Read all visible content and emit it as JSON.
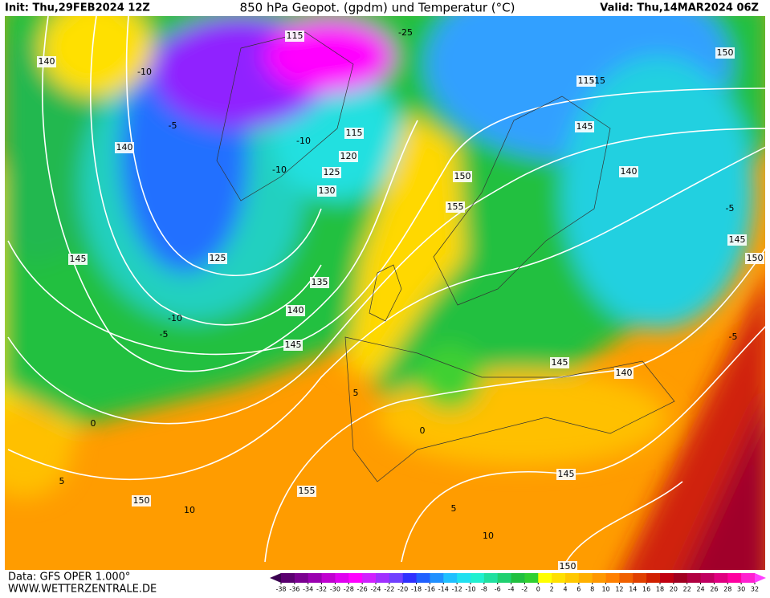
{
  "header": {
    "init": "Init: Thu,29FEB2024 12Z",
    "title": "850 hPa Geopot. (gpdm) und Temperatur (°C)",
    "valid": "Valid: Thu,14MAR2024 06Z"
  },
  "footer": {
    "data": "Data: GFS OPER 1.000°",
    "website": "WWW.WETTERZENTRALE.DE"
  },
  "geopotential_labels": [
    140,
    115,
    150,
    140,
    115,
    120,
    125,
    130,
    145,
    140,
    150,
    155,
    145,
    150,
    145,
    125,
    135,
    140,
    145,
    145,
    140,
    145,
    155,
    150,
    150,
    115
  ],
  "temperature_labels": [
    -10,
    -10,
    -10,
    -5,
    -10,
    -5,
    -5,
    -5,
    0,
    0,
    5,
    5,
    10,
    10,
    5,
    -25,
    -15
  ],
  "colorbar": {
    "ticks": [
      -38,
      -36,
      -34,
      -32,
      -30,
      -28,
      -26,
      -24,
      -22,
      -20,
      -18,
      -16,
      -14,
      -12,
      -10,
      -8,
      -6,
      -4,
      -2,
      0,
      2,
      4,
      6,
      8,
      10,
      12,
      14,
      16,
      18,
      20,
      22,
      24,
      26,
      28,
      30,
      32
    ],
    "colors": [
      "#3a0050",
      "#5a0070",
      "#7a0090",
      "#9a00b0",
      "#c000d0",
      "#e000f0",
      "#ff00ff",
      "#d020ff",
      "#a030ff",
      "#7040ff",
      "#3030ff",
      "#2060ff",
      "#2090ff",
      "#20c0ff",
      "#20e0f0",
      "#20f0d0",
      "#20e0a0",
      "#20d070",
      "#20c040",
      "#30d030",
      "#ffff00",
      "#ffe000",
      "#ffc800",
      "#ffb000",
      "#ff9800",
      "#ff8000",
      "#f06000",
      "#e04000",
      "#d02000",
      "#c00010",
      "#a00020",
      "#b00040",
      "#c00060",
      "#e00080",
      "#ff00a0",
      "#ff20d0",
      "#ff40ff"
    ]
  }
}
